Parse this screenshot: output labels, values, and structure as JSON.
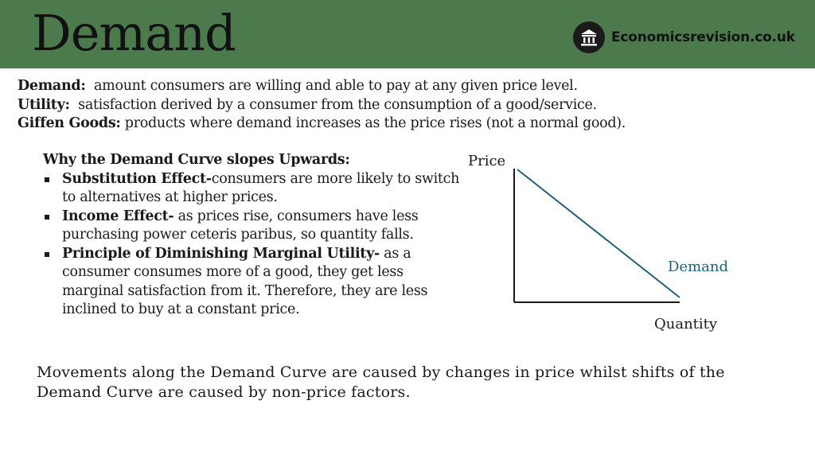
{
  "header": {
    "title": "Demand",
    "brand": "Economicsrevision.co.uk",
    "logo_icon": "pillar-icon"
  },
  "definitions": [
    {
      "term": "Demand:",
      "text": "  amount consumers are willing and able to pay at any given price level."
    },
    {
      "term": "Utility:",
      "text": "  satisfaction derived by a consumer from the consumption of a good/service."
    },
    {
      "term": "Giffen Goods:",
      "text": " products where demand increases as the price rises (not a normal good)."
    }
  ],
  "why": {
    "heading": "Why the Demand Curve slopes Upwards:",
    "items": [
      {
        "term": "Substitution Effect-",
        "text": "consumers are more likely to switch to alternatives at higher prices."
      },
      {
        "term": "Income Effect-",
        "text": " as prices rise, consumers have less purchasing power ceteris paribus, so quantity falls."
      },
      {
        "term": "Principle of Diminishing Marginal Utility-",
        "text": " as a consumer consumes more of a good, they get less marginal satisfaction from it. Therefore, they are less inclined to buy at a constant price."
      }
    ]
  },
  "footer_note": "Movements along the Demand Curve are caused by changes in price whilst shifts of the Demand Curve are caused by non-price factors.",
  "diagram": {
    "y_axis_label": "Price",
    "x_axis_label": "Quantity",
    "curve_label": "Demand",
    "curve_color": "#1f5f7a",
    "label_color": "#1f5f7a",
    "axis_color": "#1a1a1a"
  },
  "colors": {
    "header_bg": "#4c7a4d",
    "text": "#1a1a1a"
  }
}
